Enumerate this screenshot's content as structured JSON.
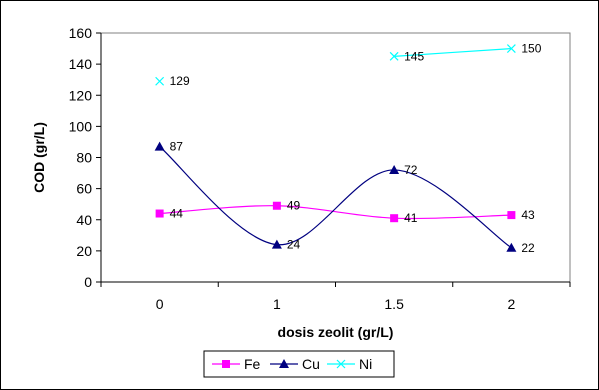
{
  "chart_data": {
    "type": "line",
    "title": "",
    "xlabel": "dosis zeolit (gr/L)",
    "ylabel": "COD (gr/L)",
    "categories": [
      "0",
      "1",
      "1.5",
      "2"
    ],
    "ylim": [
      0,
      160
    ],
    "yticks": [
      0,
      20,
      40,
      60,
      80,
      100,
      120,
      140,
      160
    ],
    "grid": false,
    "legend_position": "bottom",
    "series": [
      {
        "name": "Fe",
        "values": [
          44,
          49,
          41,
          43
        ],
        "color": "#ff00ff",
        "marker": "square",
        "smooth": true
      },
      {
        "name": "Cu",
        "values": [
          87,
          24,
          72,
          22
        ],
        "color": "#000080",
        "marker": "triangle",
        "smooth": true
      },
      {
        "name": "Ni",
        "values": [
          129,
          null,
          145,
          150
        ],
        "color": "#00ffff",
        "marker": "x",
        "smooth": true
      }
    ]
  }
}
